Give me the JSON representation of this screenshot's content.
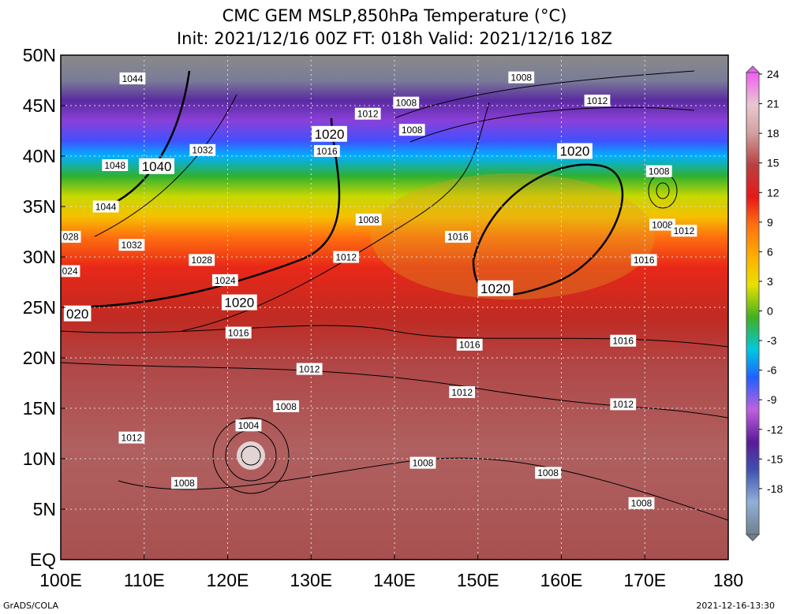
{
  "header": {
    "title_line1": "CMC GEM MSLP,850hPa Temperature (°C)",
    "title_line2": "Init: 2021/12/16 00Z  FT: 018h  Valid: 2021/12/16 18Z"
  },
  "map": {
    "lon_range": [
      100,
      180
    ],
    "lat_range": [
      0,
      50
    ],
    "lat_labels": [
      "50N",
      "45N",
      "40N",
      "35N",
      "30N",
      "25N",
      "20N",
      "15N",
      "10N",
      "5N",
      "EQ"
    ],
    "lat_values": [
      50,
      45,
      40,
      35,
      30,
      25,
      20,
      15,
      10,
      5,
      0
    ],
    "lon_labels": [
      "100E",
      "110E",
      "120E",
      "130E",
      "140E",
      "150E",
      "160E",
      "170E",
      "180"
    ],
    "lon_values": [
      100,
      110,
      120,
      130,
      140,
      150,
      160,
      170,
      180
    ],
    "isobar_labels": [
      {
        "text": "1044",
        "lon": 108.6,
        "lat": 47.7
      },
      {
        "text": "1048",
        "lon": 106.5,
        "lat": 39.1
      },
      {
        "text": "1040",
        "lon": 111.5,
        "lat": 39.0,
        "major": true
      },
      {
        "text": "1044",
        "lon": 105.4,
        "lat": 35.0
      },
      {
        "text": "1032",
        "lon": 117.0,
        "lat": 40.6
      },
      {
        "text": "1020",
        "lon": 132.2,
        "lat": 42.2,
        "major": true
      },
      {
        "text": "1016",
        "lon": 131.9,
        "lat": 40.5
      },
      {
        "text": "1012",
        "lon": 136.8,
        "lat": 44.2
      },
      {
        "text": "1008",
        "lon": 141.4,
        "lat": 45.3
      },
      {
        "text": "1008",
        "lon": 142.1,
        "lat": 42.6
      },
      {
        "text": "1008",
        "lon": 155.2,
        "lat": 47.8
      },
      {
        "text": "1012",
        "lon": 164.3,
        "lat": 45.5
      },
      {
        "text": "1020",
        "lon": 161.6,
        "lat": 40.5,
        "major": true
      },
      {
        "text": "1008",
        "lon": 171.7,
        "lat": 38.5
      },
      {
        "text": "1008",
        "lon": 172.1,
        "lat": 33.2
      },
      {
        "text": "1012",
        "lon": 174.7,
        "lat": 32.6
      },
      {
        "text": "1016",
        "lon": 169.9,
        "lat": 29.7
      },
      {
        "text": "028",
        "lon": 101.2,
        "lat": 32.0
      },
      {
        "text": "1032",
        "lon": 108.5,
        "lat": 31.2
      },
      {
        "text": "1008",
        "lon": 136.9,
        "lat": 33.7
      },
      {
        "text": "1016",
        "lon": 147.6,
        "lat": 32.0
      },
      {
        "text": "1012",
        "lon": 134.2,
        "lat": 30.0
      },
      {
        "text": "024",
        "lon": 101.1,
        "lat": 28.6
      },
      {
        "text": "1028",
        "lon": 116.9,
        "lat": 29.7
      },
      {
        "text": "1024",
        "lon": 119.7,
        "lat": 27.7
      },
      {
        "text": "1020",
        "lon": 121.4,
        "lat": 25.5,
        "major": true
      },
      {
        "text": "020",
        "lon": 102.0,
        "lat": 24.4,
        "major": true
      },
      {
        "text": "1020",
        "lon": 152.1,
        "lat": 26.9,
        "major": true
      },
      {
        "text": "1016",
        "lon": 121.3,
        "lat": 22.5
      },
      {
        "text": "1016",
        "lon": 149.0,
        "lat": 21.3
      },
      {
        "text": "1016",
        "lon": 167.4,
        "lat": 21.7
      },
      {
        "text": "1012",
        "lon": 129.8,
        "lat": 18.9
      },
      {
        "text": "1012",
        "lon": 148.1,
        "lat": 16.6
      },
      {
        "text": "1012",
        "lon": 167.4,
        "lat": 15.4
      },
      {
        "text": "1008",
        "lon": 127.0,
        "lat": 15.2
      },
      {
        "text": "1004",
        "lon": 122.5,
        "lat": 13.3
      },
      {
        "text": "1012",
        "lon": 108.5,
        "lat": 12.1
      },
      {
        "text": "1008",
        "lon": 143.4,
        "lat": 9.6
      },
      {
        "text": "1008",
        "lon": 158.4,
        "lat": 8.6
      },
      {
        "text": "1008",
        "lon": 114.8,
        "lat": 7.6
      },
      {
        "text": "1008",
        "lon": 169.6,
        "lat": 5.6
      }
    ]
  },
  "colorbar": {
    "labels": [
      "24",
      "21",
      "18",
      "15",
      "12",
      "9",
      "6",
      "3",
      "0",
      "-3",
      "-6",
      "-9",
      "-12",
      "-15",
      "-18"
    ],
    "colors": [
      "#f25df2",
      "#e5e0e0",
      "#d6a8a8",
      "#b84848",
      "#e81818",
      "#ff6a10",
      "#ffa500",
      "#f2d400",
      "#c8e100",
      "#5ac81e",
      "#1ea01e",
      "#00c8c8",
      "#00a0ff",
      "#3050ff",
      "#2820d0",
      "#a055ff",
      "#6a2abf",
      "#4a1e8a",
      "#3a2a78",
      "#6070c0",
      "#8ca8d8",
      "#a8b8c8",
      "#7a8a98"
    ]
  },
  "footer": {
    "left": "GrADS/COLA",
    "right": "2021-12-16-13:30"
  }
}
